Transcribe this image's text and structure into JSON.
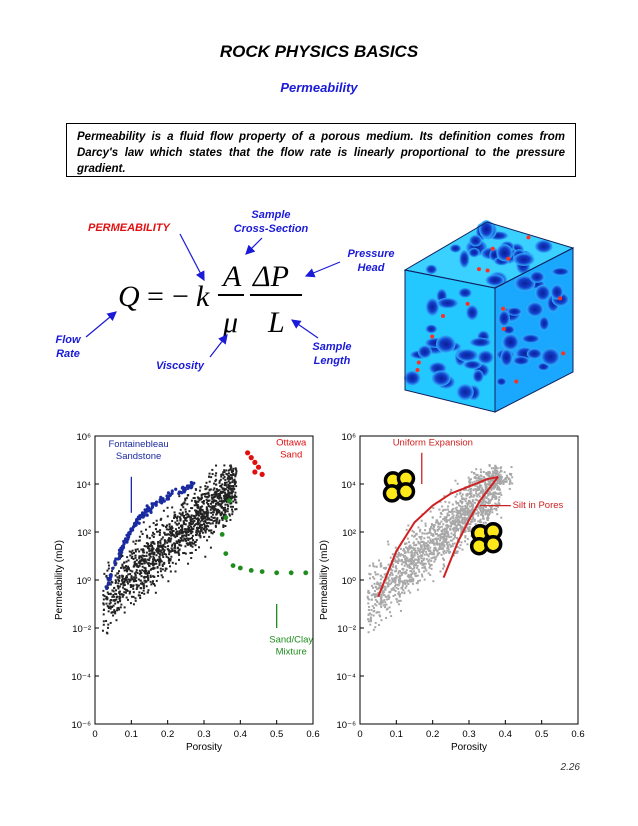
{
  "header": {
    "title": "ROCK PHYSICS BASICS",
    "subtitle": "Permeability"
  },
  "definition": "Permeability is a fluid flow property of a porous medium.  Its definition comes from Darcy's law which states that the flow rate is linearly proportional to the pressure gradient.",
  "equation": {
    "Q": "Q",
    "equals": "=",
    "minus": "−",
    "k": "k",
    "A": "A",
    "mu": "μ",
    "dP": "ΔP",
    "L": "L"
  },
  "labels": {
    "permeability": "PERMEABILITY",
    "sample_cross_section": [
      "Sample",
      "Cross-Section"
    ],
    "pressure_head": [
      "Pressure",
      "Head"
    ],
    "flow_rate": [
      "Flow",
      "Rate"
    ],
    "viscosity": "Viscosity",
    "sample_length": [
      "Sample",
      "Length"
    ]
  },
  "colors": {
    "blue_label": "#1a1ad8",
    "red_label": "#e01010",
    "fontainebleau": "#1a2aa0",
    "ottawa": "#e01010",
    "sand_clay": "#1e8c1e",
    "scatter_dark": "#222222",
    "scatter_grey": "#a8a8a8"
  },
  "chart_data": [
    {
      "type": "scatter",
      "xlabel": "Porosity",
      "ylabel": "Permeability (mD)",
      "xlim": [
        0,
        0.6
      ],
      "ylim_log10": [
        -6,
        6
      ],
      "x_ticks": [
        "0",
        "0.1",
        "0.2",
        "0.3",
        "0.4",
        "0.5",
        "0.6"
      ],
      "y_ticks": [
        "10⁶",
        "10⁴",
        "10²",
        "10⁰",
        "10⁻²",
        "10⁻⁴",
        "10⁻⁶"
      ],
      "annotations": {
        "fontainebleau": [
          "Fontainebleau",
          "Sandstone"
        ],
        "ottawa": [
          "Ottawa",
          "Sand"
        ],
        "sand_clay": [
          "Sand/Clay",
          "Mixture"
        ]
      },
      "series": [
        {
          "name": "Fontainebleau Sandstone",
          "x": [
            0.03,
            0.05,
            0.07,
            0.09,
            0.11,
            0.13,
            0.15,
            0.18,
            0.21,
            0.24,
            0.27
          ],
          "log10_y": [
            -0.4,
            0.5,
            1.2,
            1.8,
            2.3,
            2.7,
            3.0,
            3.3,
            3.6,
            3.8,
            4.0
          ]
        },
        {
          "name": "Ottawa Sand",
          "x": [
            0.42,
            0.43,
            0.44,
            0.45,
            0.44,
            0.46
          ],
          "log10_y": [
            5.3,
            5.1,
            4.9,
            4.7,
            4.5,
            4.4
          ]
        },
        {
          "name": "Sand/Clay Mixture",
          "x": [
            0.37,
            0.36,
            0.35,
            0.36,
            0.38,
            0.4,
            0.43,
            0.46,
            0.5,
            0.54,
            0.58
          ],
          "log10_y": [
            3.3,
            2.6,
            1.9,
            1.1,
            0.6,
            0.5,
            0.4,
            0.35,
            0.3,
            0.3,
            0.3
          ]
        }
      ]
    },
    {
      "type": "scatter",
      "xlabel": "Porosity",
      "ylabel": "Permeability (mD)",
      "xlim": [
        0,
        0.6
      ],
      "ylim_log10": [
        -6,
        6
      ],
      "x_ticks": [
        "0",
        "0.1",
        "0.2",
        "0.3",
        "0.4",
        "0.5",
        "0.6"
      ],
      "y_ticks": [
        "10⁶",
        "10⁴",
        "10²",
        "10⁰",
        "10⁻²",
        "10⁻⁴",
        "10⁻⁶"
      ],
      "annotations": {
        "uniform_expansion": "Uniform Expansion",
        "silt_in_pores": "Silt in Pores"
      },
      "curves": [
        {
          "name": "Uniform Expansion",
          "x": [
            0.05,
            0.1,
            0.15,
            0.2,
            0.25,
            0.3,
            0.35,
            0.38
          ],
          "log10_y": [
            -0.7,
            1.2,
            2.4,
            3.1,
            3.6,
            3.9,
            4.2,
            4.3
          ]
        },
        {
          "name": "Silt in Pores",
          "x": [
            0.23,
            0.27,
            0.3,
            0.33,
            0.36,
            0.38
          ],
          "log10_y": [
            0.1,
            1.6,
            2.5,
            3.3,
            3.9,
            4.3
          ]
        }
      ]
    }
  ],
  "page_number": "2.26"
}
